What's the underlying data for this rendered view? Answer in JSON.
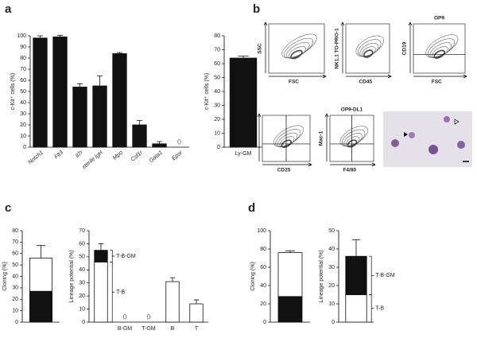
{
  "panel_labels": [
    "a",
    "b",
    "c",
    "d"
  ],
  "flow_panels": [
    {
      "x_label": "FSC",
      "y_label": "SSC"
    },
    {
      "x_label": "CD45",
      "y_label": "NK1.1 TO-PRO-1"
    },
    {
      "title": "OP9",
      "x_label": "FSC",
      "y_label": "CD19"
    },
    {
      "x_label": "CD25",
      "y_label": "Thy1.2"
    },
    {
      "title": "OP9-DL1",
      "x_label": "F4/80",
      "y_label": "Mac-1"
    }
  ],
  "chart_data": [
    {
      "type": "bar",
      "y_label": "c-Kit⁺ cells (%)",
      "categories": [
        "Notch1",
        "Flt3",
        "Il7r",
        "sterile IgH",
        "Mpo",
        "Csf1r",
        "Gata1",
        "Epor"
      ],
      "series": [
        {
          "color": "#111111",
          "values": [
            98,
            99,
            54,
            55,
            84,
            20,
            3,
            0
          ],
          "errors": [
            2,
            1.5,
            3,
            9,
            1,
            4,
            2,
            0
          ]
        }
      ],
      "ylim": [
        0,
        100
      ],
      "yticks": [
        0,
        10,
        20,
        30,
        40,
        50,
        60,
        70,
        80,
        90,
        100
      ]
    },
    {
      "type": "bar",
      "y_label": "c-Kit⁺ cells (%)",
      "categories": [
        "Ly-GM"
      ],
      "series": [
        {
          "color": "#111111",
          "values": [
            64
          ],
          "errors": [
            1.5
          ]
        }
      ],
      "ylim": [
        0,
        80
      ],
      "yticks": [
        0,
        10,
        20,
        30,
        40,
        50,
        60,
        70,
        80
      ]
    },
    {
      "type": "bar",
      "y_label": "Cloning (%)",
      "categories": [
        null
      ],
      "series": [
        {
          "color": "#111111",
          "values": [
            27
          ],
          "errors": [
            4
          ]
        },
        {
          "color": "#ffffff",
          "values": [
            29
          ],
          "errors": [
            11
          ]
        }
      ],
      "ylim": [
        0,
        80
      ],
      "yticks": [
        0,
        10,
        20,
        30,
        40,
        50,
        60,
        70,
        80
      ]
    },
    {
      "type": "bar",
      "y_label": "Lineage potential (%)",
      "categories": [
        null,
        "B-GM",
        "T-GM",
        "B",
        "T"
      ],
      "series": [
        {
          "name": "T-B",
          "color": "#ffffff",
          "values": [
            46,
            0,
            0,
            31,
            14
          ],
          "errors": [
            null,
            null,
            null,
            3,
            3
          ]
        },
        {
          "name": "T-B-GM",
          "color": "#111111",
          "values": [
            9,
            null,
            null,
            null,
            null
          ],
          "errors": [
            5,
            null,
            null,
            null,
            null
          ]
        }
      ],
      "ylim": [
        0,
        70
      ],
      "yticks": [
        0,
        10,
        20,
        30,
        40,
        50,
        60,
        70
      ],
      "legend": "bracket"
    },
    {
      "type": "bar",
      "y_label": "Cloning (%)",
      "categories": [
        null
      ],
      "series": [
        {
          "color": "#111111",
          "values": [
            28
          ],
          "errors": [
            4
          ]
        },
        {
          "color": "#ffffff",
          "values": [
            48
          ],
          "errors": [
            2
          ]
        }
      ],
      "ylim": [
        0,
        100
      ],
      "yticks": [
        0,
        20,
        40,
        60,
        80,
        100
      ]
    },
    {
      "type": "bar",
      "y_label": "Lineage potential (%)",
      "categories": [
        null
      ],
      "series": [
        {
          "name": "T-B",
          "color": "#ffffff",
          "values": [
            15
          ],
          "errors": [
            null
          ]
        },
        {
          "name": "T-B-GM",
          "color": "#111111",
          "values": [
            21
          ],
          "errors": [
            9
          ]
        }
      ],
      "ylim": [
        0,
        50
      ],
      "yticks": [
        0,
        10,
        20,
        30,
        40,
        50
      ],
      "legend": "bracket"
    }
  ]
}
